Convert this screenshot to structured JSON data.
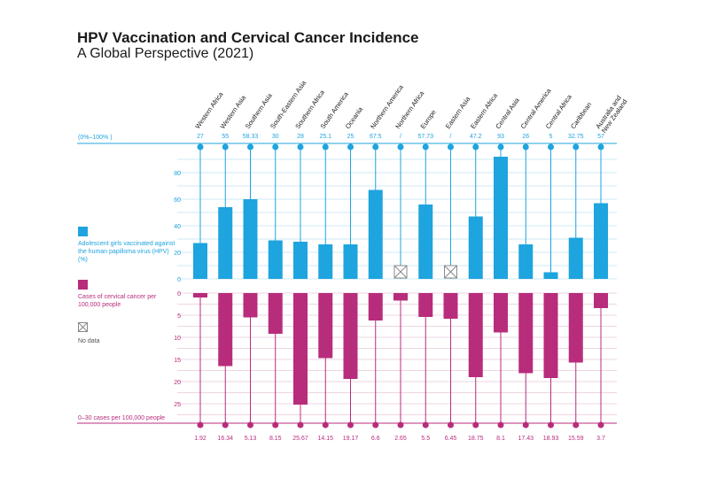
{
  "header": {
    "title": "HPV Vaccination and Cervical Cancer Incidence",
    "subtitle": "A Global Perspective (2021)"
  },
  "colors": {
    "vaccination": "#1ea4de",
    "cancer": "#b82c7c",
    "grid": "#bfe3f3",
    "grid_bottom": "#e8c6da",
    "nodata": "#888888"
  },
  "legend": {
    "vaccination_label": "Adolescent girls vaccinated against the human papilloma virus (HPV) (%)",
    "cancer_label": "Cases of cervical cancer per 100,000 people",
    "nodata_label": "No data",
    "nodata_icon": "crossed-box-icon"
  },
  "axes": {
    "top_range_label": "(0%–100% )",
    "bottom_range_label": "0–30 cases per 100,000 people"
  },
  "chart_data": {
    "type": "bar",
    "title": "HPV Vaccination and Cervical Cancer Incidence",
    "categories": [
      "Western Africa",
      "Western Asia",
      "Southern Asia",
      "South-Eastern Asia",
      "Southern Africa",
      "South America",
      "Oceania",
      "Northern America",
      "Northern Africa",
      "Europe",
      "Eastern Asia",
      "Eastern Africa",
      "Central Asia",
      "Central America",
      "Central Africa",
      "Caribbean",
      "Australia and New Zealand"
    ],
    "series": [
      {
        "name": "Adolescent girls vaccinated against the human papilloma virus (HPV) (%)",
        "values": [
          27,
          55,
          58.33,
          30,
          28,
          25.1,
          25,
          67.5,
          null,
          57.73,
          null,
          47.2,
          93,
          26,
          5,
          32.75,
          57
        ],
        "value_labels": [
          "27",
          "55",
          "58.33",
          "30",
          "28",
          "25.1",
          "25",
          "67.5",
          "/",
          "57.73",
          "/",
          "47.2",
          "93",
          "26",
          "5",
          "32.75",
          "57"
        ],
        "plotted_values": [
          27,
          54,
          60,
          29,
          28,
          26,
          26,
          67,
          null,
          56,
          null,
          47,
          92,
          26,
          5,
          31,
          57
        ],
        "ylim": [
          0,
          100
        ],
        "ticks": [
          0,
          20,
          40,
          60,
          80
        ]
      },
      {
        "name": "Cases of cervical cancer per 100,000 people",
        "values": [
          1.92,
          16.34,
          5.13,
          8.15,
          25.67,
          14.15,
          19.17,
          6.6,
          2.65,
          5.5,
          6.45,
          18.75,
          8.1,
          17.43,
          18.93,
          15.59,
          3.7
        ],
        "value_labels": [
          "1.92",
          "16.34",
          "5.13",
          "8.15",
          "25.67",
          "14.15",
          "19.17",
          "6.6",
          "2.65",
          "5.5",
          "6.45",
          "18.75",
          "8.1",
          "17.43",
          "18.93",
          "15.59",
          "3.7"
        ],
        "plotted_values": [
          1,
          16.5,
          5.5,
          9.2,
          25.2,
          14.7,
          19.4,
          6.2,
          1.7,
          5.4,
          5.8,
          19,
          8.9,
          18.1,
          19.2,
          15.7,
          3.4
        ],
        "ylim": [
          0,
          30
        ],
        "ticks": [
          0,
          5,
          10,
          15,
          20,
          25
        ]
      }
    ],
    "grid": true,
    "legend_position": "left"
  }
}
